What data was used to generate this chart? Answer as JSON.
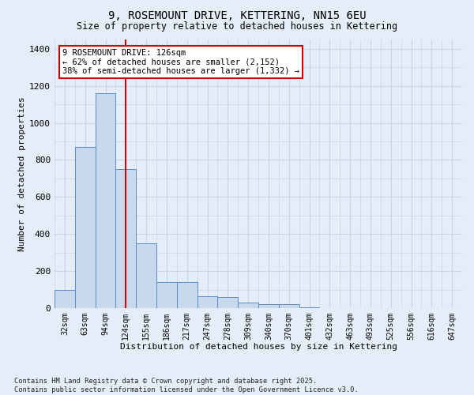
{
  "title": "9, ROSEMOUNT DRIVE, KETTERING, NN15 6EU",
  "subtitle": "Size of property relative to detached houses in Kettering",
  "xlabel": "Distribution of detached houses by size in Kettering",
  "ylabel": "Number of detached properties",
  "categories": [
    "32sqm",
    "63sqm",
    "94sqm",
    "124sqm",
    "155sqm",
    "186sqm",
    "217sqm",
    "247sqm",
    "278sqm",
    "309sqm",
    "340sqm",
    "370sqm",
    "401sqm",
    "432sqm",
    "463sqm",
    "493sqm",
    "525sqm",
    "556sqm",
    "616sqm",
    "647sqm"
  ],
  "values": [
    100,
    870,
    1160,
    750,
    350,
    140,
    140,
    62,
    60,
    30,
    20,
    20,
    5,
    0,
    0,
    0,
    0,
    0,
    0,
    0
  ],
  "bar_color": "#c8d9ee",
  "bar_edge_color": "#5b8cc8",
  "grid_color": "#c8d4e8",
  "background_color": "#e4edf8",
  "red_line_x": 3.0,
  "annotation_text": "9 ROSEMOUNT DRIVE: 126sqm\n← 62% of detached houses are smaller (2,152)\n38% of semi-detached houses are larger (1,332) →",
  "annotation_box_color": "#ffffff",
  "annotation_border_color": "#cc0000",
  "footer": "Contains HM Land Registry data © Crown copyright and database right 2025.\nContains public sector information licensed under the Open Government Licence v3.0.",
  "ylim": [
    0,
    1450
  ],
  "yticks": [
    0,
    200,
    400,
    600,
    800,
    1000,
    1200,
    1400
  ]
}
